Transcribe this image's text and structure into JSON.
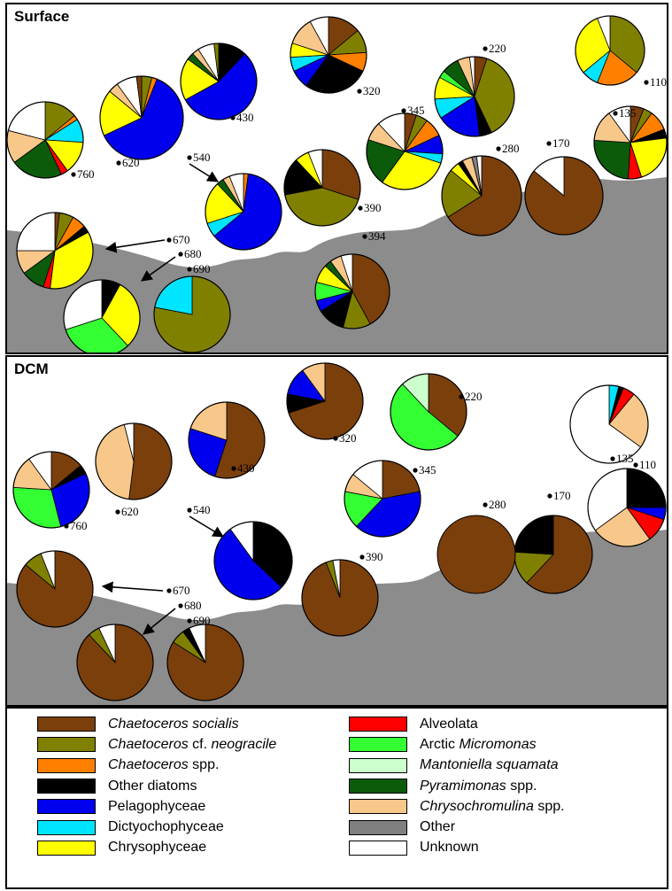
{
  "categories": {
    "cs": {
      "label": "Chaetoceros socialis",
      "color": "#7b3f0c"
    },
    "cn": {
      "label": "Chaetoceros cf. neogracile",
      "color": "#808000"
    },
    "csp": {
      "label": "Chaetoceros spp.",
      "color": "#ff8000"
    },
    "od": {
      "label": "Other diatoms",
      "color": "#000000"
    },
    "pel": {
      "label": "Pelagophyceae",
      "color": "#0000ee"
    },
    "dic": {
      "label": "Dictyochophyceae",
      "color": "#00e5ff"
    },
    "chr": {
      "label": "Chrysophyceae",
      "color": "#ffff00"
    },
    "alv": {
      "label": "Alveolata",
      "color": "#ff0000"
    },
    "mic": {
      "label": "Arctic Micromonas",
      "color": "#33ff33"
    },
    "man": {
      "label": "Mantoniella squamata",
      "color": "#ccffcc"
    },
    "pyr": {
      "label": "Pyramimonas spp.",
      "color": "#0b5b0b"
    },
    "chy": {
      "label": "Chrysochromulina spp.",
      "color": "#f8c88a"
    },
    "oth": {
      "label": "Other",
      "color": "#808080"
    },
    "unk": {
      "label": "Unknown",
      "color": "#ffffff"
    }
  },
  "legend": {
    "left": [
      {
        "key": "cs",
        "parts": [
          {
            "t": "Chaetoceros socialis",
            "i": true
          }
        ]
      },
      {
        "key": "cn",
        "parts": [
          {
            "t": "Chaetoceros",
            "i": true
          },
          {
            "t": " cf. ",
            "i": false
          },
          {
            "t": "neogracile",
            "i": true
          }
        ]
      },
      {
        "key": "csp",
        "parts": [
          {
            "t": "Chaetoceros",
            "i": true
          },
          {
            "t": " spp.",
            "i": false
          }
        ]
      },
      {
        "key": "od",
        "parts": [
          {
            "t": "Other diatoms",
            "i": false
          }
        ]
      },
      {
        "key": "pel",
        "parts": [
          {
            "t": "Pelagophyceae",
            "i": false
          }
        ]
      },
      {
        "key": "dic",
        "parts": [
          {
            "t": "Dictyochophyceae",
            "i": false
          }
        ]
      },
      {
        "key": "chr",
        "parts": [
          {
            "t": "Chrysophyceae",
            "i": false
          }
        ]
      }
    ],
    "right": [
      {
        "key": "alv",
        "parts": [
          {
            "t": "Alveolata",
            "i": false
          }
        ]
      },
      {
        "key": "mic",
        "parts": [
          {
            "t": "Arctic ",
            "i": false
          },
          {
            "t": "Micromonas",
            "i": true
          }
        ]
      },
      {
        "key": "man",
        "parts": [
          {
            "t": "Mantoniella squamata",
            "i": true
          }
        ]
      },
      {
        "key": "pyr",
        "parts": [
          {
            "t": "Pyramimonas",
            "i": true
          },
          {
            "t": " spp.",
            "i": false
          }
        ]
      },
      {
        "key": "chy",
        "parts": [
          {
            "t": "Chrysochromulina",
            "i": true
          },
          {
            "t": " spp.",
            "i": false
          }
        ]
      },
      {
        "key": "oth",
        "parts": [
          {
            "t": "Other",
            "i": false
          }
        ]
      },
      {
        "key": "unk",
        "parts": [
          {
            "t": "Unknown",
            "i": false
          }
        ]
      }
    ]
  },
  "chart_data": [
    {
      "type": "pie",
      "title": "Surface",
      "pies": [
        {
          "station": "110",
          "slices": [
            {
              "cat": "cn",
              "value": 36
            },
            {
              "cat": "csp",
              "value": 20
            },
            {
              "cat": "dic",
              "value": 8
            },
            {
              "cat": "chr",
              "value": 30
            },
            {
              "cat": "unk",
              "value": 6
            }
          ]
        },
        {
          "station": "135",
          "slices": [
            {
              "cat": "cs",
              "value": 6
            },
            {
              "cat": "cn",
              "value": 4
            },
            {
              "cat": "csp",
              "value": 9
            },
            {
              "cat": "od",
              "value": 4
            },
            {
              "cat": "chr",
              "value": 22
            },
            {
              "cat": "alv",
              "value": 6
            },
            {
              "cat": "pyr",
              "value": 25
            },
            {
              "cat": "chy",
              "value": 14
            },
            {
              "cat": "unk",
              "value": 10
            }
          ]
        },
        {
          "station": "170",
          "slices": [
            {
              "cat": "cs",
              "value": 86
            },
            {
              "cat": "unk",
              "value": 14
            }
          ]
        },
        {
          "station": "220",
          "slices": [
            {
              "cat": "cs",
              "value": 5
            },
            {
              "cat": "cn",
              "value": 38
            },
            {
              "cat": "od",
              "value": 5
            },
            {
              "cat": "pel",
              "value": 18
            },
            {
              "cat": "dic",
              "value": 8
            },
            {
              "cat": "chr",
              "value": 9
            },
            {
              "cat": "mic",
              "value": 3
            },
            {
              "cat": "pyr",
              "value": 7
            },
            {
              "cat": "chy",
              "value": 5
            },
            {
              "cat": "unk",
              "value": 2
            }
          ]
        },
        {
          "station": "280",
          "slices": [
            {
              "cat": "cs",
              "value": 66
            },
            {
              "cat": "cn",
              "value": 20
            },
            {
              "cat": "chr",
              "value": 4
            },
            {
              "cat": "od",
              "value": 2
            },
            {
              "cat": "chy",
              "value": 4
            },
            {
              "cat": "oth",
              "value": 2
            },
            {
              "cat": "unk",
              "value": 2
            }
          ]
        },
        {
          "station": "320",
          "slices": [
            {
              "cat": "cs",
              "value": 14
            },
            {
              "cat": "cn",
              "value": 10
            },
            {
              "cat": "csp",
              "value": 8
            },
            {
              "cat": "od",
              "value": 28
            },
            {
              "cat": "pel",
              "value": 8
            },
            {
              "cat": "dic",
              "value": 6
            },
            {
              "cat": "chr",
              "value": 6
            },
            {
              "cat": "chy",
              "value": 12
            },
            {
              "cat": "unk",
              "value": 8
            }
          ]
        },
        {
          "station": "345",
          "slices": [
            {
              "cat": "cs",
              "value": 5
            },
            {
              "cat": "cn",
              "value": 5
            },
            {
              "cat": "csp",
              "value": 8
            },
            {
              "cat": "pel",
              "value": 8
            },
            {
              "cat": "dic",
              "value": 4
            },
            {
              "cat": "chr",
              "value": 30
            },
            {
              "cat": "pyr",
              "value": 20
            },
            {
              "cat": "chy",
              "value": 8
            },
            {
              "cat": "unk",
              "value": 12
            }
          ]
        },
        {
          "station": "390",
          "slices": [
            {
              "cat": "cs",
              "value": 30
            },
            {
              "cat": "cn",
              "value": 42
            },
            {
              "cat": "od",
              "value": 16
            },
            {
              "cat": "chr",
              "value": 6
            },
            {
              "cat": "unk",
              "value": 6
            }
          ]
        },
        {
          "station": "394",
          "slices": [
            {
              "cat": "cs",
              "value": 42
            },
            {
              "cat": "cn",
              "value": 12
            },
            {
              "cat": "od",
              "value": 12
            },
            {
              "cat": "pel",
              "value": 5
            },
            {
              "cat": "mic",
              "value": 8
            },
            {
              "cat": "chr",
              "value": 8
            },
            {
              "cat": "pyr",
              "value": 3
            },
            {
              "cat": "chy",
              "value": 5
            },
            {
              "cat": "unk",
              "value": 5
            }
          ]
        },
        {
          "station": "430",
          "slices": [
            {
              "cat": "od",
              "value": 12
            },
            {
              "cat": "pel",
              "value": 55
            },
            {
              "cat": "chr",
              "value": 18
            },
            {
              "cat": "pyr",
              "value": 3
            },
            {
              "cat": "chy",
              "value": 3
            },
            {
              "cat": "unk",
              "value": 7
            },
            {
              "cat": "cn",
              "value": 2
            }
          ]
        },
        {
          "station": "540",
          "slices": [
            {
              "cat": "csp",
              "value": 2
            },
            {
              "cat": "pel",
              "value": 62
            },
            {
              "cat": "dic",
              "value": 6
            },
            {
              "cat": "chr",
              "value": 18
            },
            {
              "cat": "pyr",
              "value": 3
            },
            {
              "cat": "chy",
              "value": 3
            },
            {
              "cat": "unk",
              "value": 6
            }
          ]
        },
        {
          "station": "620",
          "slices": [
            {
              "cat": "cn",
              "value": 4
            },
            {
              "cat": "csp",
              "value": 2
            },
            {
              "cat": "pel",
              "value": 62
            },
            {
              "cat": "chr",
              "value": 18
            },
            {
              "cat": "chy",
              "value": 4
            },
            {
              "cat": "unk",
              "value": 8
            },
            {
              "cat": "cs",
              "value": 2
            }
          ]
        },
        {
          "station": "670",
          "slices": [
            {
              "cat": "cs",
              "value": 2
            },
            {
              "cat": "cn",
              "value": 6
            },
            {
              "cat": "csp",
              "value": 6
            },
            {
              "cat": "od",
              "value": 3
            },
            {
              "cat": "chr",
              "value": 35
            },
            {
              "cat": "alv",
              "value": 3
            },
            {
              "cat": "pyr",
              "value": 10
            },
            {
              "cat": "chy",
              "value": 10
            },
            {
              "cat": "unk",
              "value": 25
            }
          ]
        },
        {
          "station": "680",
          "slices": [
            {
              "cat": "od",
              "value": 8
            },
            {
              "cat": "chr",
              "value": 30
            },
            {
              "cat": "mic",
              "value": 32
            },
            {
              "cat": "unk",
              "value": 30
            }
          ]
        },
        {
          "station": "690",
          "slices": [
            {
              "cat": "cn",
              "value": 78
            },
            {
              "cat": "dic",
              "value": 22
            }
          ]
        },
        {
          "station": "760",
          "slices": [
            {
              "cat": "cn",
              "value": 14
            },
            {
              "cat": "csp",
              "value": 2
            },
            {
              "cat": "dic",
              "value": 10
            },
            {
              "cat": "chr",
              "value": 14
            },
            {
              "cat": "alv",
              "value": 3
            },
            {
              "cat": "pyr",
              "value": 22
            },
            {
              "cat": "chy",
              "value": 14
            },
            {
              "cat": "unk",
              "value": 21
            }
          ]
        }
      ]
    },
    {
      "type": "pie",
      "title": "DCM",
      "pies": [
        {
          "station": "110",
          "slices": [
            {
              "cat": "dic",
              "value": 4
            },
            {
              "cat": "od",
              "value": 2
            },
            {
              "cat": "alv",
              "value": 5
            },
            {
              "cat": "chy",
              "value": 24
            },
            {
              "cat": "unk",
              "value": 65
            }
          ]
        },
        {
          "station": "135",
          "slices": [
            {
              "cat": "od",
              "value": 25
            },
            {
              "cat": "pel",
              "value": 5
            },
            {
              "cat": "alv",
              "value": 10
            },
            {
              "cat": "chy",
              "value": 25
            },
            {
              "cat": "unk",
              "value": 35
            }
          ]
        },
        {
          "station": "170",
          "slices": [
            {
              "cat": "cs",
              "value": 62
            },
            {
              "cat": "cn",
              "value": 14
            },
            {
              "cat": "od",
              "value": 24
            }
          ]
        },
        {
          "station": "220",
          "slices": [
            {
              "cat": "cs",
              "value": 36
            },
            {
              "cat": "mic",
              "value": 52
            },
            {
              "cat": "man",
              "value": 12
            }
          ]
        },
        {
          "station": "280",
          "slices": [
            {
              "cat": "cs",
              "value": 100
            }
          ]
        },
        {
          "station": "320",
          "slices": [
            {
              "cat": "cs",
              "value": 70
            },
            {
              "cat": "od",
              "value": 8
            },
            {
              "cat": "pel",
              "value": 12
            },
            {
              "cat": "chy",
              "value": 10
            }
          ]
        },
        {
          "station": "345",
          "slices": [
            {
              "cat": "cs",
              "value": 22
            },
            {
              "cat": "pel",
              "value": 40
            },
            {
              "cat": "mic",
              "value": 16
            },
            {
              "cat": "chy",
              "value": 8
            },
            {
              "cat": "unk",
              "value": 14
            }
          ]
        },
        {
          "station": "390",
          "slices": [
            {
              "cat": "cs",
              "value": 94
            },
            {
              "cat": "cn",
              "value": 3
            },
            {
              "cat": "unk",
              "value": 3
            }
          ]
        },
        {
          "station": "430",
          "slices": [
            {
              "cat": "cs",
              "value": 55
            },
            {
              "cat": "pel",
              "value": 25
            },
            {
              "cat": "chy",
              "value": 20
            }
          ]
        },
        {
          "station": "540",
          "slices": [
            {
              "cat": "od",
              "value": 37
            },
            {
              "cat": "pel",
              "value": 53
            },
            {
              "cat": "unk",
              "value": 10
            }
          ]
        },
        {
          "station": "620",
          "slices": [
            {
              "cat": "cs",
              "value": 52
            },
            {
              "cat": "chy",
              "value": 44
            },
            {
              "cat": "unk",
              "value": 4
            }
          ]
        },
        {
          "station": "670",
          "slices": [
            {
              "cat": "cs",
              "value": 86
            },
            {
              "cat": "cn",
              "value": 8
            },
            {
              "cat": "unk",
              "value": 6
            }
          ]
        },
        {
          "station": "680",
          "slices": [
            {
              "cat": "cs",
              "value": 88
            },
            {
              "cat": "cn",
              "value": 5
            },
            {
              "cat": "unk",
              "value": 7
            }
          ]
        },
        {
          "station": "690",
          "slices": [
            {
              "cat": "cs",
              "value": 84
            },
            {
              "cat": "cn",
              "value": 6
            },
            {
              "cat": "od",
              "value": 3
            },
            {
              "cat": "unk",
              "value": 7
            }
          ]
        },
        {
          "station": "760",
          "slices": [
            {
              "cat": "cs",
              "value": 14
            },
            {
              "cat": "od",
              "value": 4
            },
            {
              "cat": "pel",
              "value": 28
            },
            {
              "cat": "mic",
              "value": 30
            },
            {
              "cat": "chy",
              "value": 14
            },
            {
              "cat": "unk",
              "value": 10
            }
          ]
        }
      ]
    }
  ]
}
